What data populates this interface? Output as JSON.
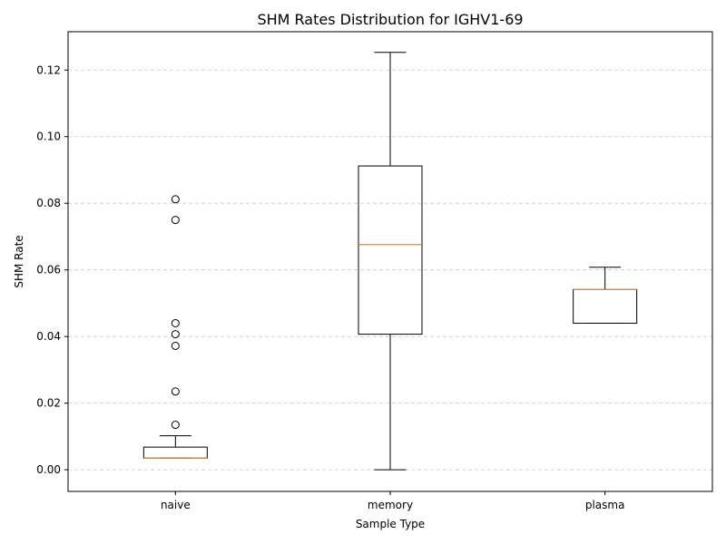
{
  "chart_data": {
    "type": "box",
    "title": "SHM Rates Distribution for IGHV1-69",
    "xlabel": "Sample Type",
    "ylabel": "SHM Rate",
    "ylim": [
      -0.0065,
      0.1315
    ],
    "yticks": [
      "0.00",
      "0.02",
      "0.04",
      "0.06",
      "0.08",
      "0.10",
      "0.12"
    ],
    "grid": "y-dashed",
    "categories": [
      "naive",
      "memory",
      "plasma"
    ],
    "boxes": [
      {
        "category": "naive",
        "whisker_low": 0.0035,
        "q1": 0.0035,
        "median": 0.0035,
        "q3": 0.0068,
        "whisker_high": 0.0102,
        "outliers": [
          0.0135,
          0.0235,
          0.0372,
          0.0407,
          0.044,
          0.075,
          0.0812
        ]
      },
      {
        "category": "memory",
        "whisker_low": 0.0,
        "q1": 0.0407,
        "median": 0.0676,
        "q3": 0.0912,
        "whisker_high": 0.1253,
        "outliers": []
      },
      {
        "category": "plasma",
        "whisker_low": 0.044,
        "q1": 0.044,
        "median": 0.0541,
        "q3": 0.0541,
        "whisker_high": 0.0608,
        "outliers": []
      }
    ],
    "colors": {
      "box": "#000000",
      "median": "#ff7f0e",
      "grid": "#c8c8c8"
    }
  }
}
